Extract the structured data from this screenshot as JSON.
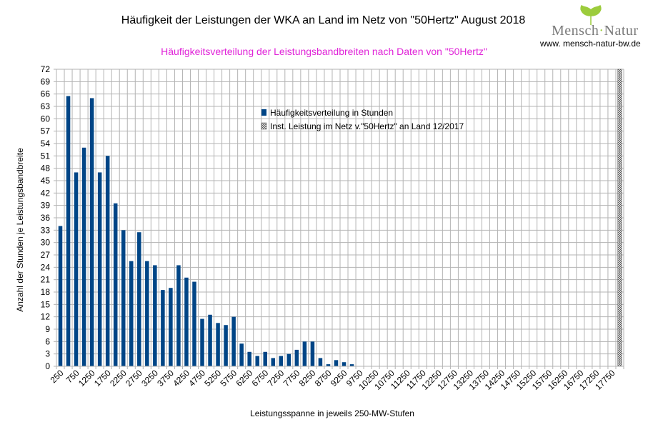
{
  "chart_data": {
    "type": "bar",
    "title": "Häufigkeit der Leistungen der WKA an Land im Netz von \"50Hertz\" August 2018",
    "subtitle": "Häufigkeitsverteilung der Leistungsbandbreiten nach Daten von \"50Hertz\"",
    "xlabel": "Leistungsspanne in jeweils 250-MW-Stufen",
    "ylabel": "Anzahl der Stunden je Leistungsbandbreite",
    "ylim": [
      0,
      72
    ],
    "yticks": [
      0,
      3,
      6,
      9,
      12,
      15,
      18,
      21,
      24,
      27,
      30,
      33,
      36,
      39,
      42,
      45,
      48,
      51,
      54,
      57,
      60,
      63,
      66,
      69,
      72
    ],
    "x_tick_labels": [
      "250",
      "750",
      "1250",
      "1750",
      "2250",
      "2750",
      "3250",
      "3750",
      "4250",
      "4750",
      "5250",
      "5750",
      "6250",
      "6750",
      "7250",
      "7750",
      "8250",
      "8750",
      "9250",
      "9750",
      "10250",
      "10750",
      "11250",
      "11750",
      "12250",
      "12750",
      "13250",
      "13750",
      "14250",
      "14750",
      "15250",
      "15750",
      "16250",
      "16750",
      "17250",
      "17750"
    ],
    "categories_step_mw": 250,
    "series": [
      {
        "name": "Häufigkeitsverteilung in Stunden",
        "color": "#004586",
        "values": [
          34,
          65.5,
          47,
          53,
          65,
          47,
          51,
          39.5,
          33,
          25.5,
          32.5,
          25.5,
          24.5,
          18.5,
          19,
          24.5,
          21.5,
          20.5,
          11.5,
          12.5,
          10.5,
          10,
          12,
          5.5,
          3.5,
          2.5,
          3.5,
          2,
          2.5,
          3,
          4,
          6,
          6,
          2,
          0.5,
          1.5,
          1,
          0.5
        ]
      },
      {
        "name": "Inst. Leistung im Netz v.\"50Hertz\" an Land 12/2017",
        "color": "#808080",
        "pattern": "cross-hatch",
        "category_index": 71,
        "value": 72
      }
    ],
    "legend_position": "top-center",
    "grid": true
  },
  "logo": {
    "text": "MenschNatur",
    "url": "www. mensch-natur-bw.de",
    "leaf_color": "#9ccc3c"
  }
}
